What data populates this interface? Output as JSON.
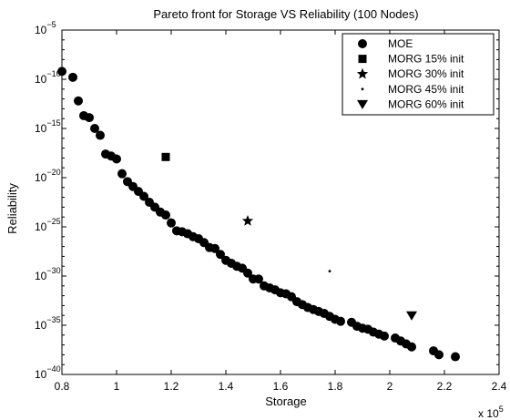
{
  "chart_data": {
    "type": "scatter",
    "title": "Pareto front for Storage VS Reliability (100 Nodes)",
    "xlabel": "Storage",
    "ylabel": "Reliability",
    "x_multiplier_label": "x 10",
    "x_multiplier_exponent": "5",
    "xlim": [
      0.8,
      2.4
    ],
    "ylim_log10": [
      -40,
      -5
    ],
    "yscale": "log",
    "x_ticks": [
      0.8,
      1,
      1.2,
      1.4,
      1.6,
      1.8,
      2,
      2.2,
      2.4
    ],
    "x_tick_labels": [
      "0.8",
      "1",
      "1.2",
      "1.4",
      "1.6",
      "1.8",
      "2",
      "2.2",
      "2.4"
    ],
    "y_ticks_log10": [
      -40,
      -35,
      -30,
      -25,
      -20,
      -15,
      -10,
      -5
    ],
    "y_tick_base": "10",
    "y_tick_exponents": [
      "−40",
      "−35",
      "−30",
      "−25",
      "−20",
      "−15",
      "−10",
      "−5"
    ],
    "grid": false,
    "legend_position": "top-right",
    "series": [
      {
        "name": "MOE",
        "marker": "circle",
        "color": "#000000",
        "points": [
          [
            0.8,
            -9.2
          ],
          [
            0.84,
            -9.8
          ],
          [
            0.86,
            -12.2
          ],
          [
            0.88,
            -13.7
          ],
          [
            0.9,
            -13.9
          ],
          [
            0.92,
            -15.0
          ],
          [
            0.94,
            -15.7
          ],
          [
            0.96,
            -17.6
          ],
          [
            0.98,
            -17.8
          ],
          [
            1.0,
            -18.1
          ],
          [
            1.02,
            -19.6
          ],
          [
            1.04,
            -20.4
          ],
          [
            1.06,
            -20.9
          ],
          [
            1.08,
            -21.4
          ],
          [
            1.1,
            -21.9
          ],
          [
            1.12,
            -22.5
          ],
          [
            1.14,
            -23.0
          ],
          [
            1.16,
            -23.5
          ],
          [
            1.18,
            -23.8
          ],
          [
            1.2,
            -24.6
          ],
          [
            1.22,
            -25.4
          ],
          [
            1.24,
            -25.5
          ],
          [
            1.26,
            -25.7
          ],
          [
            1.28,
            -26.0
          ],
          [
            1.3,
            -26.2
          ],
          [
            1.32,
            -26.6
          ],
          [
            1.34,
            -27.1
          ],
          [
            1.36,
            -27.2
          ],
          [
            1.38,
            -27.8
          ],
          [
            1.4,
            -28.4
          ],
          [
            1.42,
            -28.7
          ],
          [
            1.44,
            -29.0
          ],
          [
            1.46,
            -29.2
          ],
          [
            1.48,
            -29.7
          ],
          [
            1.5,
            -30.3
          ],
          [
            1.52,
            -30.3
          ],
          [
            1.54,
            -31.0
          ],
          [
            1.56,
            -31.2
          ],
          [
            1.58,
            -31.4
          ],
          [
            1.6,
            -31.7
          ],
          [
            1.62,
            -31.8
          ],
          [
            1.64,
            -32.1
          ],
          [
            1.66,
            -32.6
          ],
          [
            1.68,
            -32.9
          ],
          [
            1.7,
            -33.2
          ],
          [
            1.72,
            -33.4
          ],
          [
            1.74,
            -33.6
          ],
          [
            1.76,
            -33.8
          ],
          [
            1.78,
            -34.1
          ],
          [
            1.8,
            -34.4
          ],
          [
            1.82,
            -34.6
          ],
          [
            1.86,
            -34.7
          ],
          [
            1.88,
            -35.1
          ],
          [
            1.9,
            -35.3
          ],
          [
            1.92,
            -35.4
          ],
          [
            1.94,
            -35.7
          ],
          [
            1.96,
            -35.9
          ],
          [
            1.98,
            -36.1
          ],
          [
            2.02,
            -36.3
          ],
          [
            2.04,
            -36.6
          ],
          [
            2.06,
            -36.9
          ],
          [
            2.08,
            -37.2
          ],
          [
            2.16,
            -37.6
          ],
          [
            2.18,
            -38.0
          ],
          [
            2.24,
            -38.2
          ]
        ]
      },
      {
        "name": "MORG 15% init",
        "marker": "square",
        "color": "#000000",
        "points": [
          [
            1.18,
            -17.9
          ]
        ]
      },
      {
        "name": "MORG 30% init",
        "marker": "star",
        "color": "#000000",
        "points": [
          [
            1.48,
            -24.4
          ]
        ]
      },
      {
        "name": "MORG 45% init",
        "marker": "point",
        "color": "#000000",
        "points": [
          [
            1.78,
            -29.5
          ]
        ]
      },
      {
        "name": "MORG 60% init",
        "marker": "triangle-down",
        "color": "#000000",
        "points": [
          [
            2.08,
            -34.0
          ]
        ]
      }
    ]
  }
}
